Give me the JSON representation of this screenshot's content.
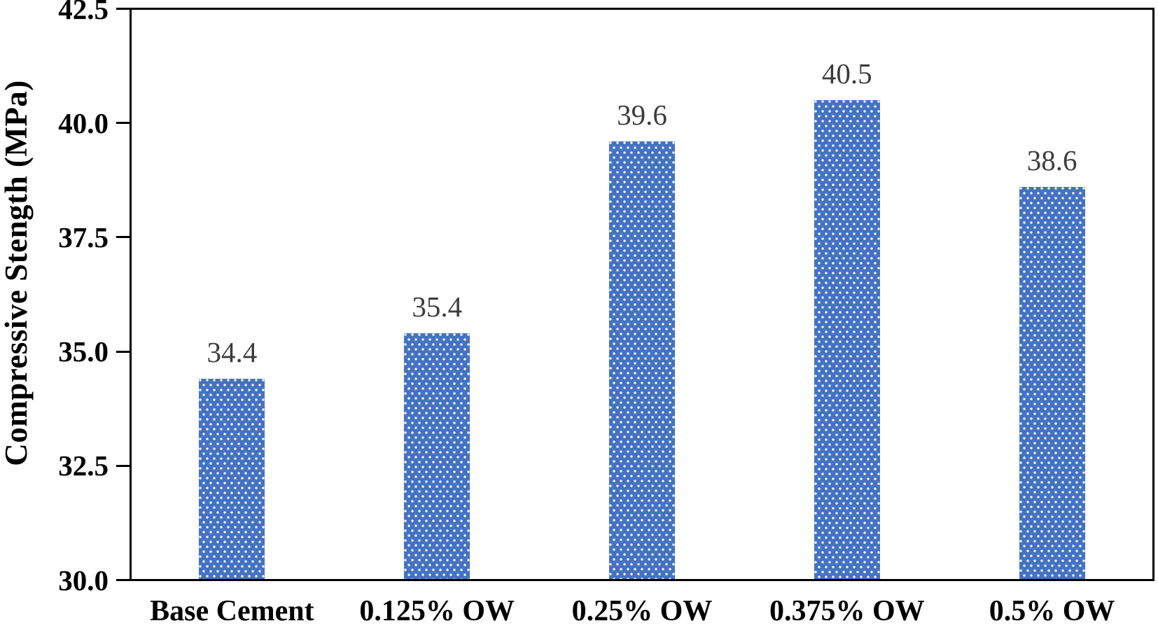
{
  "chart_data": {
    "type": "bar",
    "title": "",
    "xlabel": "",
    "ylabel": "Compressive Stength (MPa)",
    "categories": [
      "Base Cement",
      "0.125% OW",
      "0.25% OW",
      "0.375% OW",
      "0.5% OW"
    ],
    "values": [
      34.4,
      35.4,
      39.6,
      40.5,
      38.6
    ],
    "value_labels": [
      "34.4",
      "35.4",
      "39.6",
      "40.5",
      "38.6"
    ],
    "ylim": [
      30.0,
      42.5
    ],
    "ytick_labels": [
      "30.0",
      "32.5",
      "35.0",
      "37.5",
      "40.0",
      "42.5"
    ],
    "ytick_values": [
      30.0,
      32.5,
      35.0,
      37.5,
      40.0,
      42.5
    ],
    "grid": false,
    "legend_position": "none",
    "plot_frame": "full box",
    "bar_color": "#4472C4",
    "bar_pattern": "white polka dots",
    "value_label_color": "#3C3C3C",
    "axis_color": "#000000"
  }
}
